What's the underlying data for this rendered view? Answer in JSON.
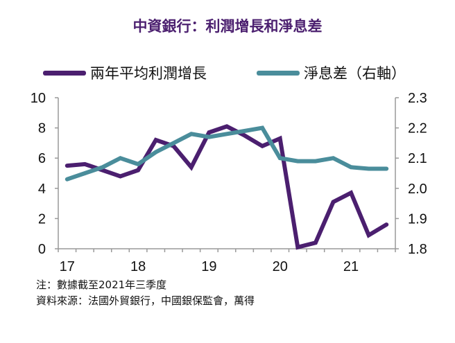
{
  "title": "中資銀行：利潤增長和淨息差",
  "notes": [
    "注：數據截至2021年三季度",
    "資料來源：法國外貿銀行，中國銀保監會，萬得"
  ],
  "chart_data": {
    "type": "line",
    "title": "中資銀行：利潤增長和淨息差",
    "legend_position": "top",
    "grid": false,
    "x_tick_labels": [
      "17",
      "18",
      "19",
      "20",
      "21"
    ],
    "x": [
      "17Q1",
      "17Q2",
      "17Q3",
      "17Q4",
      "18Q1",
      "18Q2",
      "18Q3",
      "18Q4",
      "19Q1",
      "19Q2",
      "19Q3",
      "19Q4",
      "20Q1",
      "20Q2",
      "20Q3",
      "20Q4",
      "21Q1",
      "21Q2",
      "21Q3"
    ],
    "y_left": {
      "range": [
        0,
        10
      ],
      "ticks": [
        "0",
        "2",
        "4",
        "6",
        "8",
        "10"
      ]
    },
    "y_right": {
      "range": [
        1.8,
        2.3
      ],
      "ticks": [
        "1.8",
        "1.9",
        "2.0",
        "2.1",
        "2.2",
        "2.3"
      ]
    },
    "series": [
      {
        "name": "兩年平均利潤增長",
        "axis": "left",
        "color": "#4b1f6f",
        "values": [
          5.5,
          5.6,
          5.2,
          4.8,
          5.2,
          7.2,
          6.8,
          5.4,
          7.7,
          8.1,
          7.5,
          6.8,
          7.3,
          0.1,
          0.4,
          3.1,
          3.7,
          0.9,
          1.6
        ]
      },
      {
        "name": "淨息差（右軸）",
        "axis": "right",
        "color": "#4a8d9b",
        "values": [
          2.03,
          2.05,
          2.07,
          2.1,
          2.08,
          2.12,
          2.15,
          2.18,
          2.17,
          2.18,
          2.19,
          2.2,
          2.1,
          2.09,
          2.09,
          2.1,
          2.07,
          2.065,
          2.065
        ]
      }
    ]
  }
}
